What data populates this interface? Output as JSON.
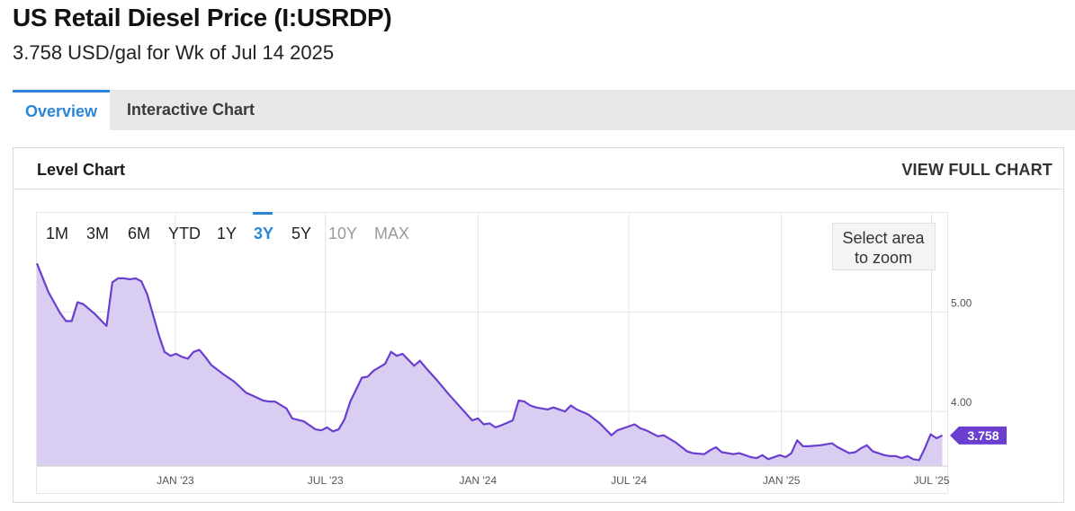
{
  "header": {
    "title": "US Retail Diesel Price (I:USRDP)",
    "subtitle": "3.758 USD/gal for Wk of Jul 14 2025"
  },
  "tabs": [
    {
      "label": "Overview",
      "active": true
    },
    {
      "label": "Interactive Chart",
      "active": false
    }
  ],
  "panel": {
    "title": "Level Chart",
    "view_full_label": "VIEW FULL CHART"
  },
  "range_buttons": [
    {
      "label": "1M",
      "state": "normal"
    },
    {
      "label": "3M",
      "state": "normal"
    },
    {
      "label": "6M",
      "state": "normal"
    },
    {
      "label": "YTD",
      "state": "normal"
    },
    {
      "label": "1Y",
      "state": "normal"
    },
    {
      "label": "3Y",
      "state": "active"
    },
    {
      "label": "5Y",
      "state": "normal"
    },
    {
      "label": "10Y",
      "state": "disabled"
    },
    {
      "label": "MAX",
      "state": "disabled"
    }
  ],
  "zoom_hint": [
    "Select area",
    "to zoom"
  ],
  "colors": {
    "accent": "#2a86d8",
    "line": "#6a3fd0",
    "area": "#d9cdf2",
    "last_badge": "#6a3fd0"
  },
  "chart_data": {
    "type": "area",
    "title": "",
    "xlabel": "",
    "ylabel": "",
    "x_ticks": [
      "JAN '23",
      "JUL '23",
      "JAN '24",
      "JUL '24",
      "JAN '25",
      "JUL '25"
    ],
    "x_tick_dates": [
      "2023-01-01",
      "2023-07-01",
      "2024-01-01",
      "2024-07-01",
      "2025-01-01",
      "2025-07-01"
    ],
    "y_ticks": [
      "4.00",
      "5.00"
    ],
    "y_tick_values": [
      4.0,
      5.0
    ],
    "xlim": [
      "2022-07-18",
      "2025-07-20"
    ],
    "ylim": [
      3.45,
      5.99
    ],
    "y_axis_side": "right",
    "grid": true,
    "last_value_label": "3.758",
    "series": [
      {
        "values": [
          [
            "2022-07-18",
            5.49
          ],
          [
            "2022-08-01",
            5.2
          ],
          [
            "2022-08-15",
            4.99
          ],
          [
            "2022-08-22",
            4.91
          ],
          [
            "2022-08-29",
            4.91
          ],
          [
            "2022-09-05",
            5.1
          ],
          [
            "2022-09-12",
            5.08
          ],
          [
            "2022-09-19",
            5.03
          ],
          [
            "2022-09-26",
            4.98
          ],
          [
            "2022-10-10",
            4.86
          ],
          [
            "2022-10-17",
            5.3
          ],
          [
            "2022-10-24",
            5.34
          ],
          [
            "2022-10-31",
            5.34
          ],
          [
            "2022-11-07",
            5.33
          ],
          [
            "2022-11-14",
            5.34
          ],
          [
            "2022-11-21",
            5.31
          ],
          [
            "2022-11-28",
            5.18
          ],
          [
            "2022-12-12",
            4.77
          ],
          [
            "2022-12-19",
            4.6
          ],
          [
            "2022-12-26",
            4.56
          ],
          [
            "2023-01-02",
            4.58
          ],
          [
            "2023-01-09",
            4.55
          ],
          [
            "2023-01-16",
            4.53
          ],
          [
            "2023-01-23",
            4.6
          ],
          [
            "2023-01-30",
            4.62
          ],
          [
            "2023-02-06",
            4.55
          ],
          [
            "2023-02-13",
            4.47
          ],
          [
            "2023-02-27",
            4.38
          ],
          [
            "2023-03-13",
            4.3
          ],
          [
            "2023-03-27",
            4.19
          ],
          [
            "2023-04-17",
            4.11
          ],
          [
            "2023-04-24",
            4.1
          ],
          [
            "2023-05-01",
            4.1
          ],
          [
            "2023-05-15",
            4.03
          ],
          [
            "2023-05-22",
            3.93
          ],
          [
            "2023-06-05",
            3.9
          ],
          [
            "2023-06-19",
            3.82
          ],
          [
            "2023-06-26",
            3.81
          ],
          [
            "2023-07-03",
            3.84
          ],
          [
            "2023-07-10",
            3.8
          ],
          [
            "2023-07-17",
            3.82
          ],
          [
            "2023-07-24",
            3.92
          ],
          [
            "2023-07-31",
            4.1
          ],
          [
            "2023-08-14",
            4.34
          ],
          [
            "2023-08-21",
            4.35
          ],
          [
            "2023-08-28",
            4.41
          ],
          [
            "2023-09-11",
            4.48
          ],
          [
            "2023-09-18",
            4.6
          ],
          [
            "2023-09-25",
            4.56
          ],
          [
            "2023-10-02",
            4.58
          ],
          [
            "2023-10-16",
            4.46
          ],
          [
            "2023-10-23",
            4.51
          ],
          [
            "2023-10-30",
            4.44
          ],
          [
            "2023-11-13",
            4.31
          ],
          [
            "2023-11-27",
            4.17
          ],
          [
            "2023-12-11",
            4.04
          ],
          [
            "2023-12-25",
            3.91
          ],
          [
            "2024-01-01",
            3.93
          ],
          [
            "2024-01-08",
            3.87
          ],
          [
            "2024-01-15",
            3.88
          ],
          [
            "2024-01-22",
            3.84
          ],
          [
            "2024-01-29",
            3.86
          ],
          [
            "2024-02-12",
            3.91
          ],
          [
            "2024-02-19",
            4.11
          ],
          [
            "2024-02-26",
            4.1
          ],
          [
            "2024-03-04",
            4.06
          ],
          [
            "2024-03-11",
            4.04
          ],
          [
            "2024-03-25",
            4.02
          ],
          [
            "2024-04-01",
            4.04
          ],
          [
            "2024-04-15",
            4.0
          ],
          [
            "2024-04-22",
            4.06
          ],
          [
            "2024-04-29",
            4.02
          ],
          [
            "2024-05-13",
            3.97
          ],
          [
            "2024-05-27",
            3.88
          ],
          [
            "2024-06-10",
            3.76
          ],
          [
            "2024-06-17",
            3.81
          ],
          [
            "2024-06-24",
            3.83
          ],
          [
            "2024-07-08",
            3.87
          ],
          [
            "2024-07-15",
            3.83
          ],
          [
            "2024-07-22",
            3.81
          ],
          [
            "2024-08-05",
            3.75
          ],
          [
            "2024-08-12",
            3.76
          ],
          [
            "2024-08-26",
            3.69
          ],
          [
            "2024-09-09",
            3.6
          ],
          [
            "2024-09-16",
            3.58
          ],
          [
            "2024-09-30",
            3.57
          ],
          [
            "2024-10-07",
            3.61
          ],
          [
            "2024-10-14",
            3.64
          ],
          [
            "2024-10-21",
            3.59
          ],
          [
            "2024-11-04",
            3.57
          ],
          [
            "2024-11-11",
            3.58
          ],
          [
            "2024-11-25",
            3.54
          ],
          [
            "2024-12-02",
            3.53
          ],
          [
            "2024-12-09",
            3.56
          ],
          [
            "2024-12-16",
            3.52
          ],
          [
            "2024-12-30",
            3.56
          ],
          [
            "2025-01-06",
            3.54
          ],
          [
            "2025-01-13",
            3.58
          ],
          [
            "2025-01-20",
            3.71
          ],
          [
            "2025-01-27",
            3.65
          ],
          [
            "2025-02-03",
            3.65
          ],
          [
            "2025-02-17",
            3.66
          ],
          [
            "2025-03-03",
            3.68
          ],
          [
            "2025-03-10",
            3.64
          ],
          [
            "2025-03-24",
            3.58
          ],
          [
            "2025-03-31",
            3.59
          ],
          [
            "2025-04-07",
            3.63
          ],
          [
            "2025-04-14",
            3.66
          ],
          [
            "2025-04-21",
            3.6
          ],
          [
            "2025-05-05",
            3.56
          ],
          [
            "2025-05-12",
            3.55
          ],
          [
            "2025-05-19",
            3.55
          ],
          [
            "2025-05-26",
            3.53
          ],
          [
            "2025-06-02",
            3.55
          ],
          [
            "2025-06-09",
            3.52
          ],
          [
            "2025-06-16",
            3.51
          ],
          [
            "2025-06-23",
            3.63
          ],
          [
            "2025-06-30",
            3.77
          ],
          [
            "2025-07-07",
            3.73
          ],
          [
            "2025-07-14",
            3.758
          ]
        ]
      }
    ]
  }
}
